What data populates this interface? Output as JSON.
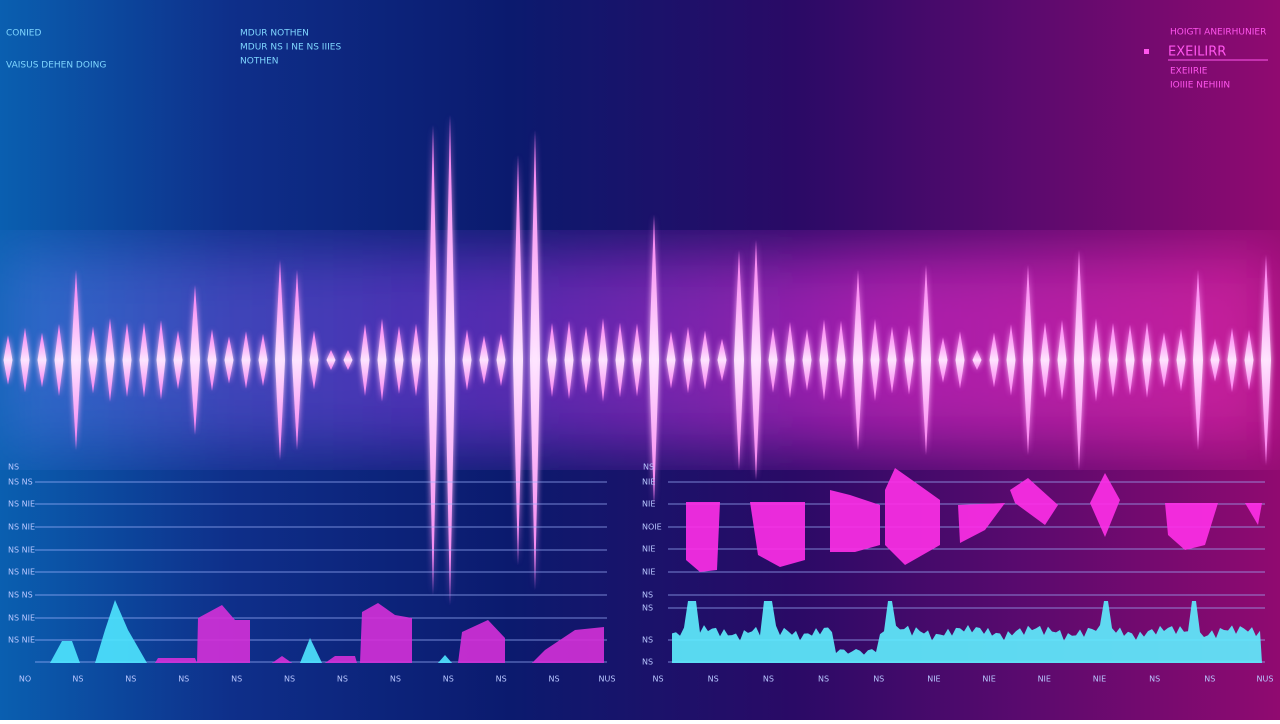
{
  "header": {
    "left": {
      "title": "CONIED",
      "subtitle": "VAISUS DEHEN DOING"
    },
    "center": {
      "title": "MDUR NOTHEN",
      "line": "MDUR NS I NE NS IIIES",
      "note": "NOTHEN"
    },
    "right": {
      "title": "HOIGTI ANEIRHUNIER",
      "heading": "EXEILIRR",
      "line": "EXEIIRIE",
      "note": "IOIIIE NEHIIIN"
    }
  },
  "left_panel": {
    "corner": "NS",
    "y_labels": [
      "NS NS",
      "NS NIE",
      "NS NIE",
      "NS NIE",
      "NS NIE",
      "NS NS",
      "NS NIE",
      "NS NIE"
    ],
    "x_labels": [
      "NO",
      "NS",
      "NS",
      "NS",
      "NS",
      "NS",
      "NS",
      "NS",
      "NS",
      "NS",
      "NS",
      "NUS"
    ]
  },
  "right_panel": {
    "corner": "NS",
    "y_labels": [
      "NIE",
      "NIE",
      "NOIE",
      "NIE",
      "NIE",
      "NS",
      "NS",
      "NS",
      "NS"
    ],
    "x_labels": [
      "NS",
      "NS",
      "NS",
      "NS",
      "NS",
      "NIE",
      "NIE",
      "NIE",
      "NIE",
      "NS",
      "NS",
      "NUS"
    ]
  }
}
